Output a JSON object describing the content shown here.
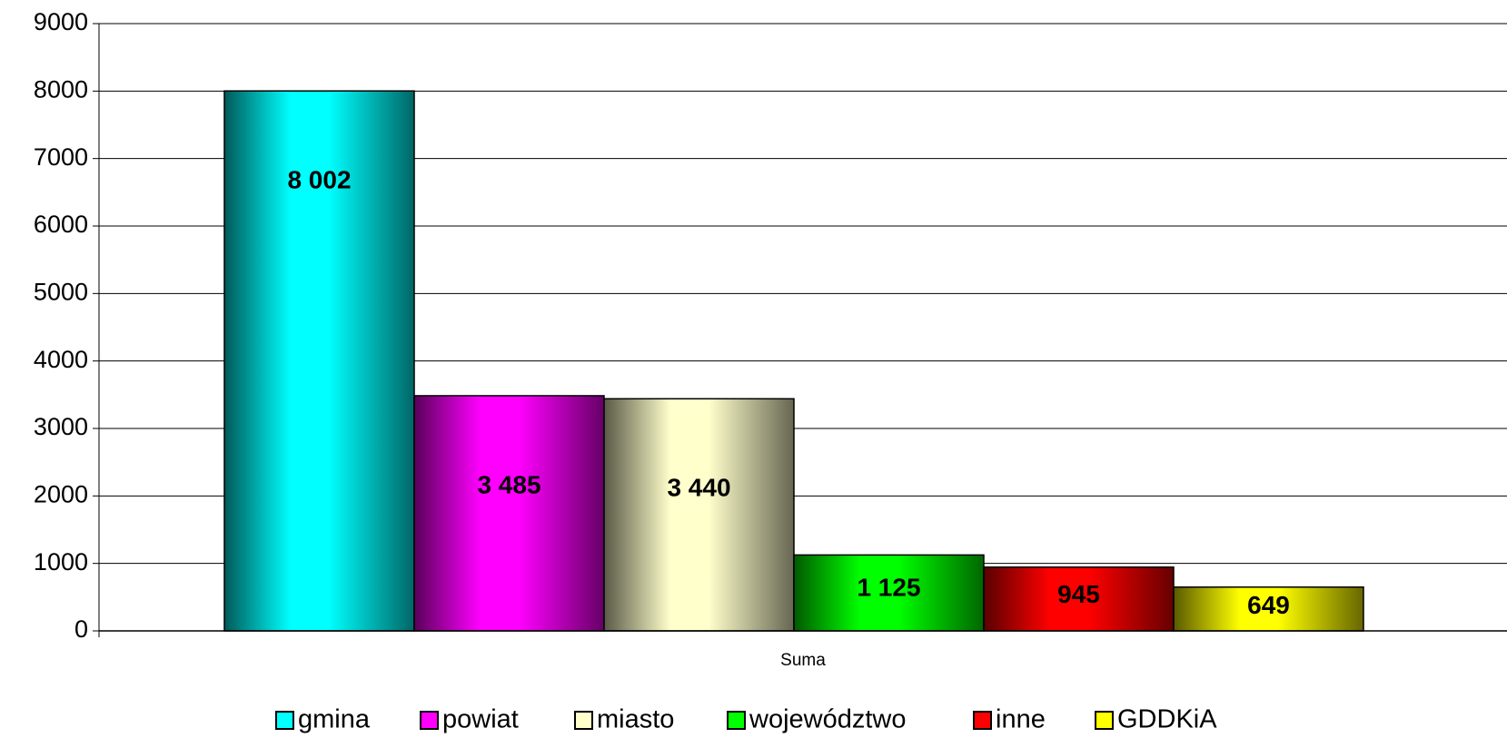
{
  "chart_data": {
    "type": "bar",
    "categories": [
      "Suma"
    ],
    "series": [
      {
        "name": "gmina",
        "color": "#00ffff",
        "values": [
          8002
        ],
        "value_labels": [
          "8 002"
        ]
      },
      {
        "name": "powiat",
        "color": "#ff00ff",
        "values": [
          3485
        ],
        "value_labels": [
          "3 485"
        ]
      },
      {
        "name": "miasto",
        "color": "#ffffcc",
        "values": [
          3440
        ],
        "value_labels": [
          "3 440"
        ]
      },
      {
        "name": "województwo",
        "color": "#00ff00",
        "values": [
          1125
        ],
        "value_labels": [
          "1 125"
        ]
      },
      {
        "name": "inne",
        "color": "#ff0000",
        "values": [
          945
        ],
        "value_labels": [
          "945"
        ]
      },
      {
        "name": "GDDKiA",
        "color": "#ffff00",
        "values": [
          649
        ],
        "value_labels": [
          "649"
        ]
      }
    ],
    "ylim": [
      0,
      9000
    ],
    "yticks": [
      0,
      1000,
      2000,
      3000,
      4000,
      5000,
      6000,
      7000,
      8000,
      9000
    ],
    "grid": true,
    "legend": "bottom"
  }
}
